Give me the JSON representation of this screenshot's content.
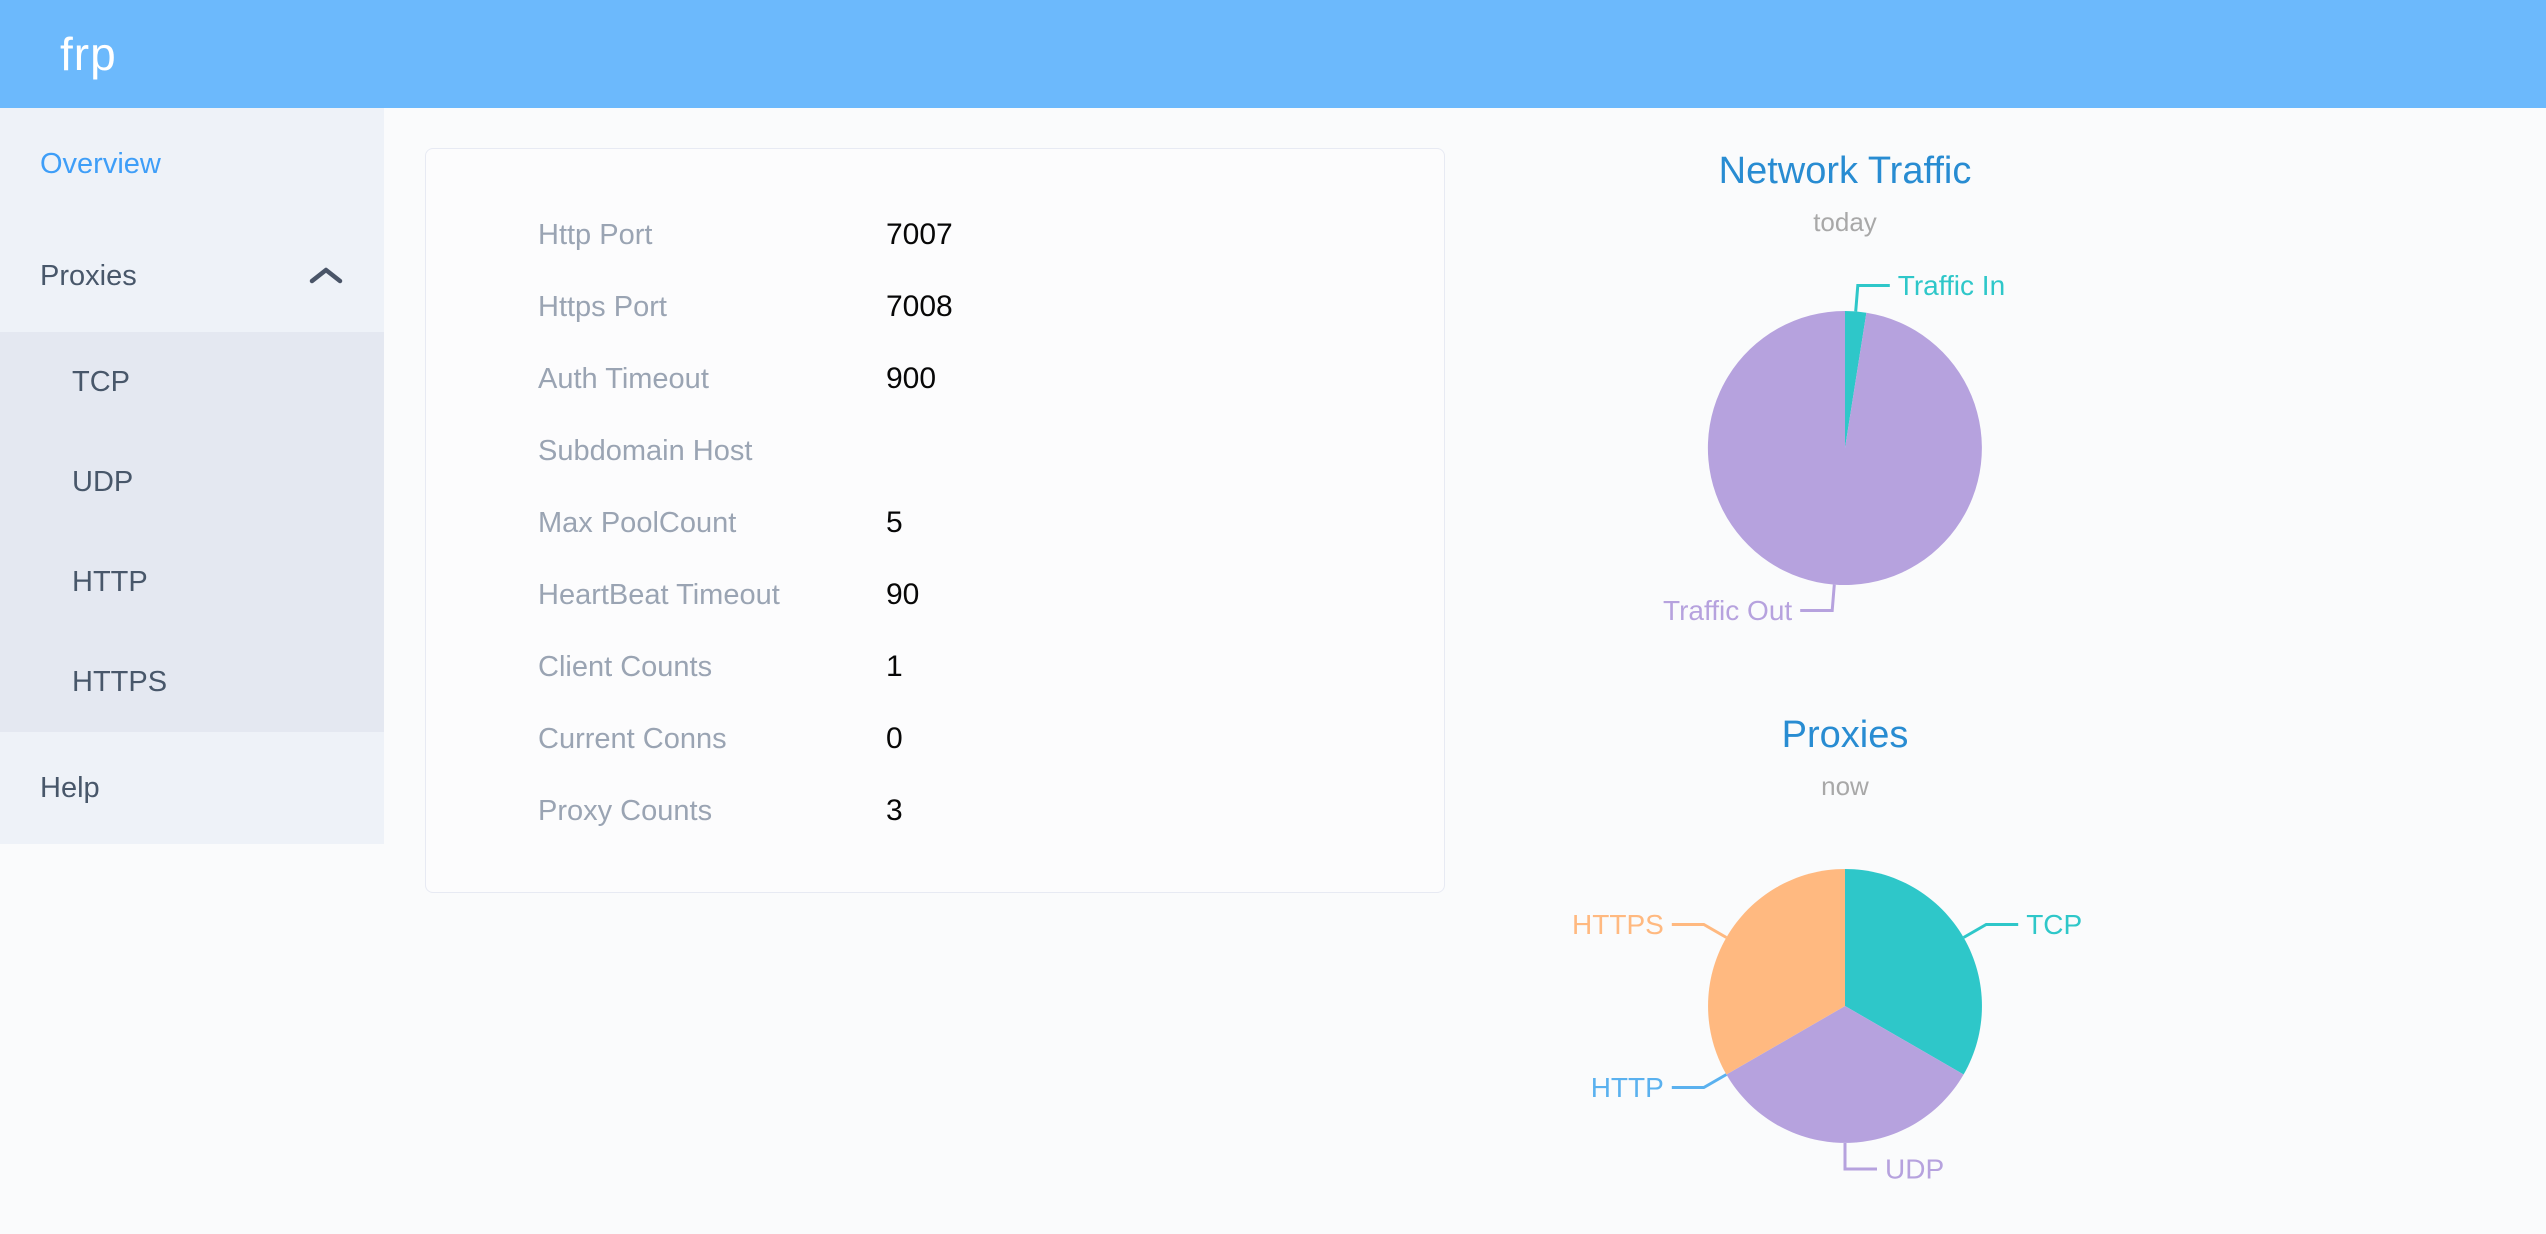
{
  "header": {
    "logo": "frp"
  },
  "sidebar": {
    "overview": "Overview",
    "proxies": "Proxies",
    "submenu": [
      "TCP",
      "UDP",
      "HTTP",
      "HTTPS"
    ],
    "help": "Help"
  },
  "server_info": {
    "rows": [
      {
        "label": "Http Port",
        "value": "7007"
      },
      {
        "label": "Https Port",
        "value": "7008"
      },
      {
        "label": "Auth Timeout",
        "value": "900"
      },
      {
        "label": "Subdomain Host",
        "value": ""
      },
      {
        "label": "Max PoolCount",
        "value": "5"
      },
      {
        "label": "HeartBeat Timeout",
        "value": "90"
      },
      {
        "label": "Client Counts",
        "value": "1"
      },
      {
        "label": "Current Conns",
        "value": "0"
      },
      {
        "label": "Proxy Counts",
        "value": "3"
      }
    ]
  },
  "chart_data": [
    {
      "type": "pie",
      "title": "Network Traffic",
      "subtitle": "today",
      "legend_position": "none",
      "grid": false,
      "series": [
        {
          "name": "Traffic In",
          "value": 2.5,
          "color": "#2ec7c9"
        },
        {
          "name": "Traffic Out",
          "value": 97.5,
          "color": "#b6a2de"
        }
      ],
      "value_unit": "percent-of-pie (no numeric labels rendered on chart)"
    },
    {
      "type": "pie",
      "title": "Proxies",
      "subtitle": "now",
      "legend_position": "none",
      "grid": false,
      "series": [
        {
          "name": "TCP",
          "value": 1,
          "color": "#2ec7c9"
        },
        {
          "name": "UDP",
          "value": 1,
          "color": "#b6a2de"
        },
        {
          "name": "HTTP",
          "value": 0,
          "color": "#5ab1ef"
        },
        {
          "name": "HTTPS",
          "value": 1,
          "color": "#ffb980"
        }
      ],
      "value_unit": "proxies"
    }
  ],
  "colors": {
    "header_bg": "#6cb9fc",
    "sidebar_bg": "#eef2f8",
    "submenu_bg": "#e4e8f1",
    "active_link": "#3e9ef8",
    "nav_text": "#48576a",
    "chart_title": "#288cd2",
    "teal": "#2ec7c9",
    "purple": "#b6a2de",
    "blue": "#5ab1ef",
    "orange": "#ffb980"
  }
}
